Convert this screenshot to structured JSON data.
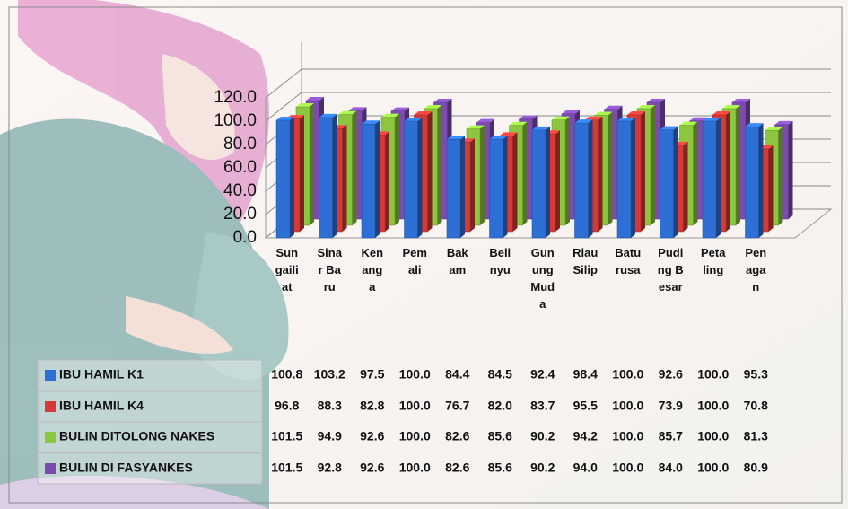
{
  "chart_data": {
    "type": "bar3d",
    "categories": [
      "Sungailiat",
      "Sinar Baru",
      "Kenanga",
      "Pemali",
      "Bakam",
      "Belinyu",
      "Gunung Muda",
      "Riau Silip",
      "Batu rusa",
      "Puding Besar",
      "Petaling",
      "Penagan"
    ],
    "series": [
      {
        "name": "IBU HAMIL K1",
        "color": "#2e6fd6",
        "values": [
          100.8,
          103.2,
          97.5,
          100,
          84.4,
          84.5,
          92.4,
          98.4,
          100,
          92.6,
          100,
          95.3
        ],
        "value_labels": [
          "100.8",
          "103.2",
          "97.5",
          "100.0",
          "84.4",
          "84.5",
          "92.4",
          "98.4",
          "100.0",
          "92.6",
          "100.0",
          "95.3"
        ]
      },
      {
        "name": "IBU HAMIL K4",
        "color": "#d63a36",
        "values": [
          96.8,
          88.3,
          82.8,
          100,
          76.7,
          82,
          83.7,
          95.5,
          100,
          73.9,
          100,
          70.8
        ],
        "value_labels": [
          "96.8",
          "88.3",
          "82.8",
          "100.0",
          "76.7",
          "82.0",
          "83.7",
          "95.5",
          "100.0",
          "73.9",
          "100.0",
          "70.8"
        ]
      },
      {
        "name": "BULIN DITOLONG NAKES",
        "color": "#8cc63f",
        "values": [
          101.5,
          94.9,
          92.6,
          100,
          82.6,
          85.6,
          90.2,
          94.2,
          100,
          85.7,
          100,
          81.3
        ],
        "value_labels": [
          "101.5",
          "94.9",
          "92.6",
          "100.0",
          "82.6",
          "85.6",
          "90.2",
          "94.2",
          "100.0",
          "85.7",
          "100.0",
          "81.3"
        ]
      },
      {
        "name": "BULIN DI FASYANKES",
        "color": "#7b4bb0",
        "values": [
          101.5,
          92.8,
          92.6,
          100,
          82.6,
          85.6,
          90.2,
          94,
          100,
          84,
          100,
          80.9
        ],
        "value_labels": [
          "101.5",
          "92.8",
          "92.6",
          "100.0",
          "82.6",
          "85.6",
          "90.2",
          "94.0",
          "100.0",
          "84.0",
          "100.0",
          "80.9"
        ]
      }
    ],
    "ylim": [
      0,
      120
    ],
    "yticks": [
      {
        "value": 0,
        "label": "0.0"
      },
      {
        "value": 20,
        "label": "20.0"
      },
      {
        "value": 40,
        "label": "40.0"
      },
      {
        "value": 60,
        "label": "60.0"
      },
      {
        "value": 80,
        "label": "80.0"
      },
      {
        "value": 100,
        "label": "100.0"
      },
      {
        "value": 120,
        "label": "120.0"
      }
    ],
    "grid": true
  }
}
